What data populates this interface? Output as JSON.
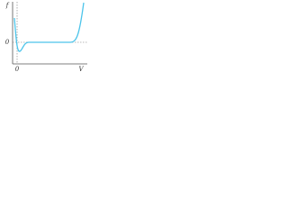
{
  "axes": {
    "y_label": "f",
    "x_label": "V",
    "x_origin_label": "0",
    "y_level_label": "0"
  }
}
